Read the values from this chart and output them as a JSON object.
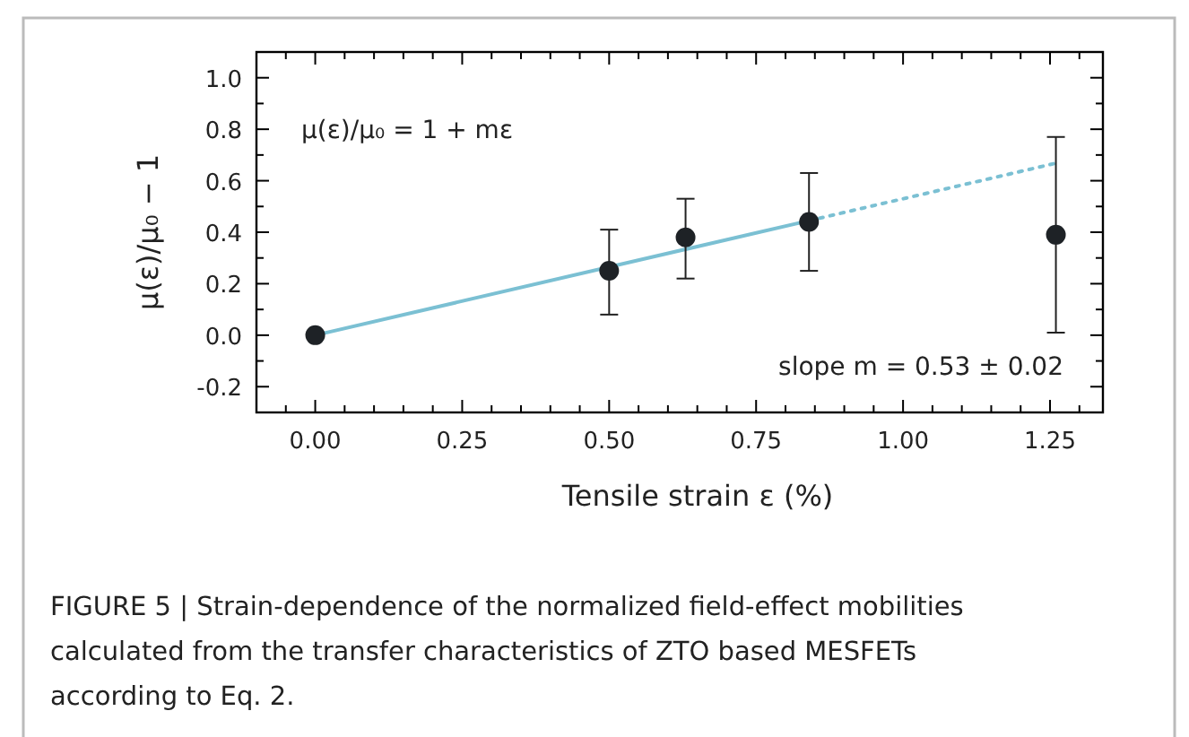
{
  "chart_data": {
    "type": "scatter",
    "xlabel": "Tensile strain ε (%)",
    "ylabel": "μ(ε)/μ₀ − 1",
    "xlim": [
      -0.1,
      1.34
    ],
    "ylim": [
      -0.3,
      1.1
    ],
    "xticks": [
      {
        "value": -0.05,
        "label": null
      },
      {
        "value": 0,
        "label": "0.00"
      },
      {
        "value": 0.05,
        "label": null
      },
      {
        "value": 0.1,
        "label": null
      },
      {
        "value": 0.15,
        "label": null
      },
      {
        "value": 0.2,
        "label": null
      },
      {
        "value": 0.25,
        "label": "0.25"
      },
      {
        "value": 0.3,
        "label": null
      },
      {
        "value": 0.35,
        "label": null
      },
      {
        "value": 0.4,
        "label": null
      },
      {
        "value": 0.45,
        "label": null
      },
      {
        "value": 0.5,
        "label": "0.50"
      },
      {
        "value": 0.55,
        "label": null
      },
      {
        "value": 0.6,
        "label": null
      },
      {
        "value": 0.65,
        "label": null
      },
      {
        "value": 0.7,
        "label": null
      },
      {
        "value": 0.75,
        "label": "0.75"
      },
      {
        "value": 0.8,
        "label": null
      },
      {
        "value": 0.85,
        "label": null
      },
      {
        "value": 0.9,
        "label": null
      },
      {
        "value": 0.95,
        "label": null
      },
      {
        "value": 1,
        "label": "1.00"
      },
      {
        "value": 1.05,
        "label": null
      },
      {
        "value": 1.1,
        "label": null
      },
      {
        "value": 1.15,
        "label": null
      },
      {
        "value": 1.2,
        "label": null
      },
      {
        "value": 1.25,
        "label": "1.25"
      },
      {
        "value": 1.3,
        "label": null
      }
    ],
    "yticks": [
      {
        "value": -0.2,
        "label": "-0.2"
      },
      {
        "value": -0.1,
        "label": null
      },
      {
        "value": 0,
        "label": "0.0"
      },
      {
        "value": 0.1,
        "label": null
      },
      {
        "value": 0.2,
        "label": "0.2"
      },
      {
        "value": 0.3,
        "label": null
      },
      {
        "value": 0.4,
        "label": "0.4"
      },
      {
        "value": 0.5,
        "label": null
      },
      {
        "value": 0.6,
        "label": "0.6"
      },
      {
        "value": 0.7,
        "label": null
      },
      {
        "value": 0.8,
        "label": "0.8"
      },
      {
        "value": 0.9,
        "label": null
      },
      {
        "value": 1,
        "label": "1.0"
      }
    ],
    "grid": false,
    "series": [
      {
        "type": "line",
        "color": "#7bc0d3",
        "x": [
          0,
          0.84
        ],
        "values": [
          0,
          0.445
        ],
        "line_style": "solid"
      },
      {
        "type": "line",
        "color": "#7bc0d3",
        "x": [
          0.84,
          1.26
        ],
        "values": [
          0.445,
          0.668
        ],
        "line_style": "dotted"
      },
      {
        "color": "#1e2226",
        "x": [
          0,
          0.5,
          0.63,
          0.84,
          1.26
        ],
        "values": [
          0,
          0.25,
          0.38,
          0.44,
          0.39
        ],
        "errors": [
          null,
          [
            0.08,
            0.41
          ],
          [
            0.22,
            0.53
          ],
          [
            0.25,
            0.63
          ],
          [
            0.01,
            0.77
          ]
        ],
        "marker": "circle"
      }
    ],
    "annotations": [
      "μ(ε)/μ₀ = 1 + mε",
      "slope m = 0.53 ± 0.02",
      "FIGURE 5 | Strain-dependence of the normalized field-effect mobilities calculated from the transfer characteristics of ZTO based MESFETs according to Eq. 2."
    ]
  }
}
